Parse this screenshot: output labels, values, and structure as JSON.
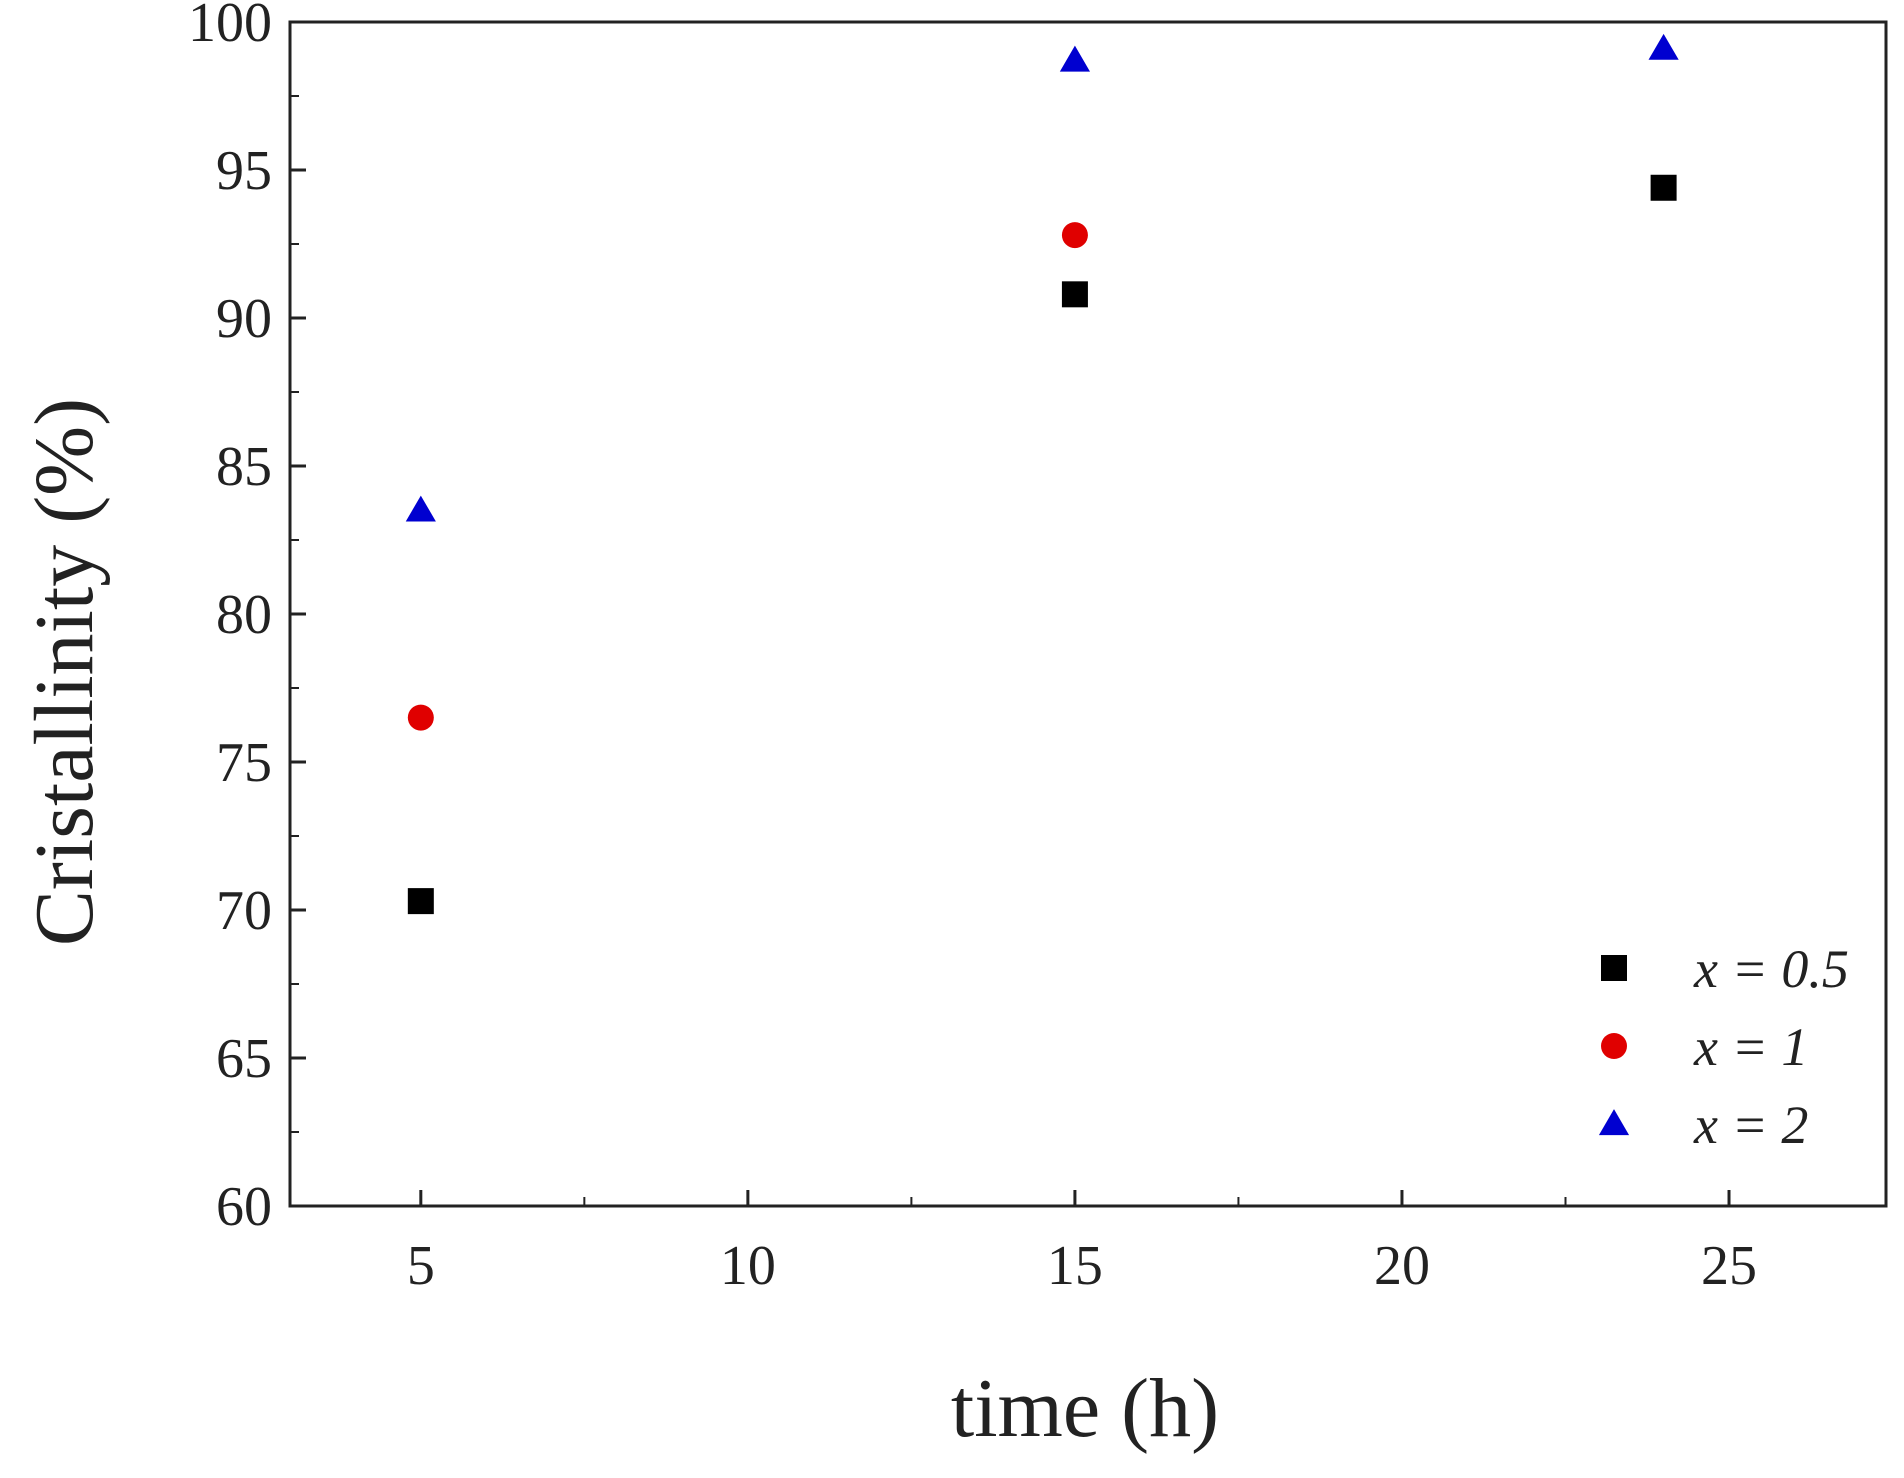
{
  "chart_data": {
    "type": "scatter",
    "title": "",
    "xlabel": "time (h)",
    "ylabel": "Cristallinity (%)",
    "xlim": [
      3,
      27.4
    ],
    "ylim": [
      60,
      100
    ],
    "xticks": [
      5,
      10,
      15,
      20,
      25
    ],
    "yticks": [
      60,
      65,
      70,
      75,
      80,
      85,
      90,
      95,
      100
    ],
    "grid": false,
    "legend_position": "bottom-right",
    "series": [
      {
        "name": "x = 0.5",
        "marker": "square",
        "color": "#000000",
        "points": [
          {
            "x": 5,
            "y": 70.3
          },
          {
            "x": 15,
            "y": 90.8
          },
          {
            "x": 24,
            "y": 94.4
          }
        ]
      },
      {
        "name": "x = 1",
        "marker": "circle",
        "color": "#e00000",
        "points": [
          {
            "x": 5,
            "y": 76.5
          },
          {
            "x": 15,
            "y": 92.8
          }
        ]
      },
      {
        "name": "x = 2",
        "marker": "triangle",
        "color": "#0000d0",
        "points": [
          {
            "x": 5,
            "y": 83.5
          },
          {
            "x": 15,
            "y": 98.7
          },
          {
            "x": 24,
            "y": 99.1
          }
        ]
      }
    ]
  }
}
